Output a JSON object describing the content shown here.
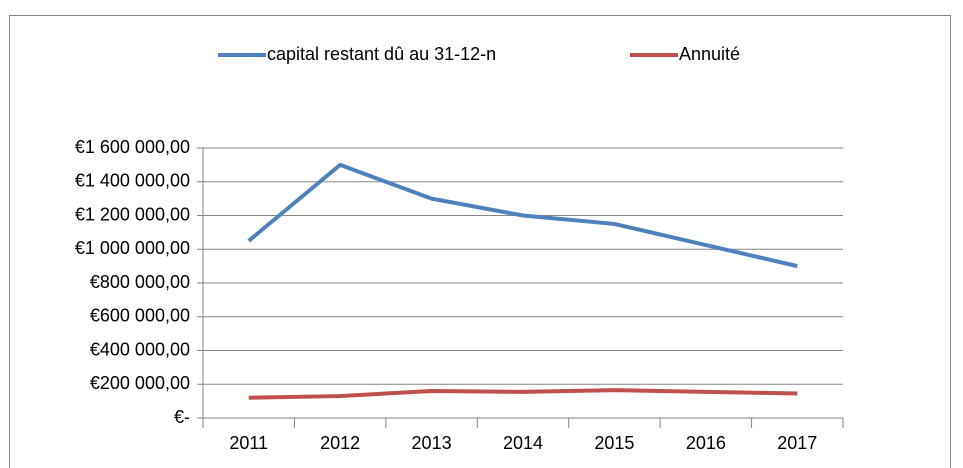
{
  "chart_data": {
    "type": "line",
    "categories": [
      "2011",
      "2012",
      "2013",
      "2014",
      "2015",
      "2016",
      "2017"
    ],
    "series": [
      {
        "name": "capital restant dû au 31-12-n",
        "color": "#4f81bd",
        "values": [
          1050000,
          1500000,
          1300000,
          1200000,
          1150000,
          1025000,
          900000
        ]
      },
      {
        "name": "Annuité",
        "color": "#c0504d",
        "values": [
          120000,
          130000,
          160000,
          155000,
          165000,
          155000,
          145000
        ]
      }
    ],
    "ylim": [
      0,
      1600000
    ],
    "yticks": [
      {
        "value": 0,
        "label": "€-"
      },
      {
        "value": 200000,
        "label": "€200 000,00"
      },
      {
        "value": 400000,
        "label": "€400 000,00"
      },
      {
        "value": 600000,
        "label": "€600 000,00"
      },
      {
        "value": 800000,
        "label": "€800 000,00"
      },
      {
        "value": 1000000,
        "label": "€1 000 000,00"
      },
      {
        "value": 1200000,
        "label": "€1 200 000,00"
      },
      {
        "value": 1400000,
        "label": "€1 400 000,00"
      },
      {
        "value": 1600000,
        "label": "€1 600 000,00"
      }
    ],
    "grid": true,
    "legend": "top"
  }
}
